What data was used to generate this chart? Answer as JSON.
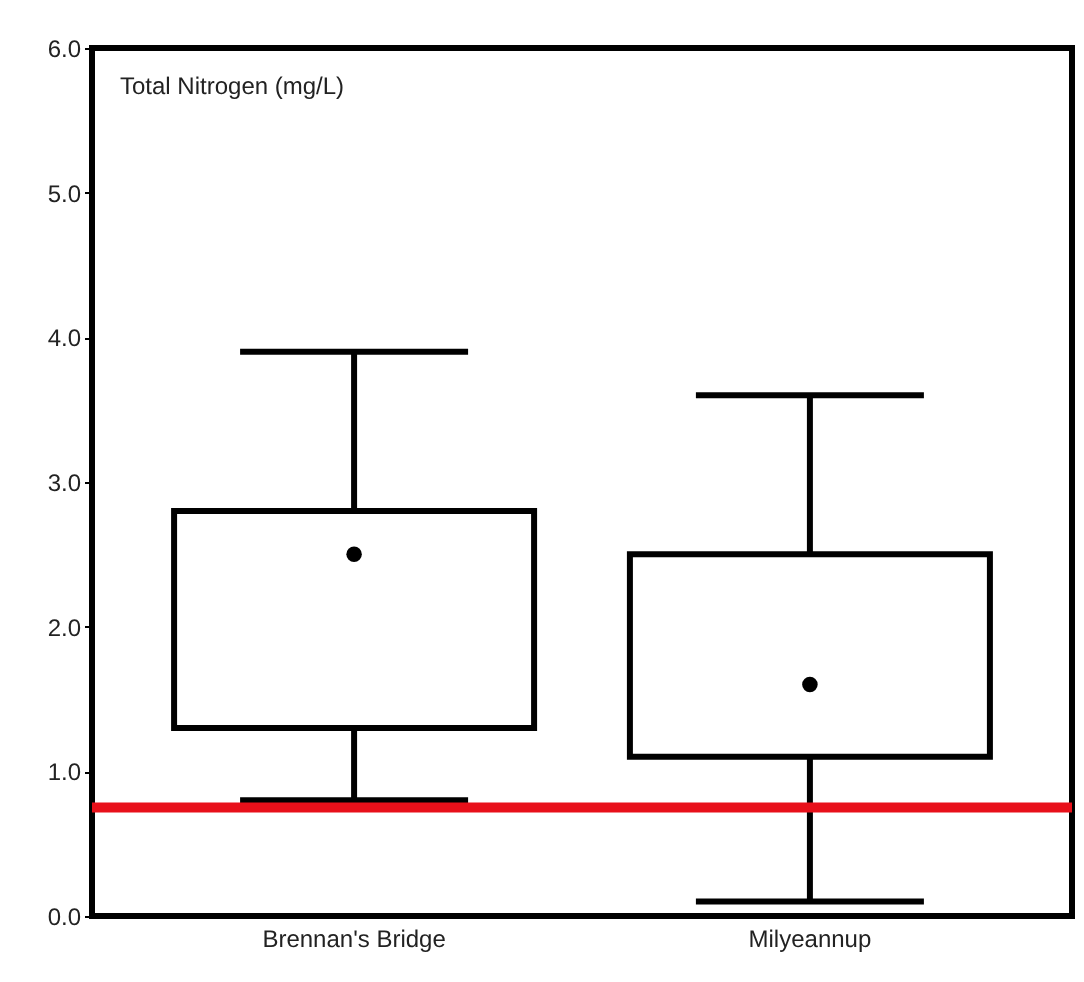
{
  "chart_data": {
    "type": "box",
    "title": "Total Nitrogen (mg/L)",
    "categories": [
      "Brennan's Bridge",
      "Milyeannup"
    ],
    "boxes": [
      {
        "low": 0.8,
        "q1": 1.3,
        "median": 2.5,
        "q3": 2.8,
        "high": 3.9
      },
      {
        "low": 0.1,
        "q1": 1.1,
        "median": 1.6,
        "q3": 2.5,
        "high": 3.6
      }
    ],
    "ylim": [
      0,
      6
    ],
    "yticks": [
      {
        "value": 0,
        "label": "0.0"
      },
      {
        "value": 1,
        "label": "1.0"
      },
      {
        "value": 2,
        "label": "2.0"
      },
      {
        "value": 3,
        "label": "3.0"
      },
      {
        "value": 4,
        "label": "4.0"
      },
      {
        "value": 5,
        "label": "5.0"
      },
      {
        "value": 6,
        "label": "6.0"
      }
    ],
    "ref_lines": [
      {
        "axis": "y",
        "value": 0.75,
        "color": "#e8101a"
      }
    ]
  }
}
